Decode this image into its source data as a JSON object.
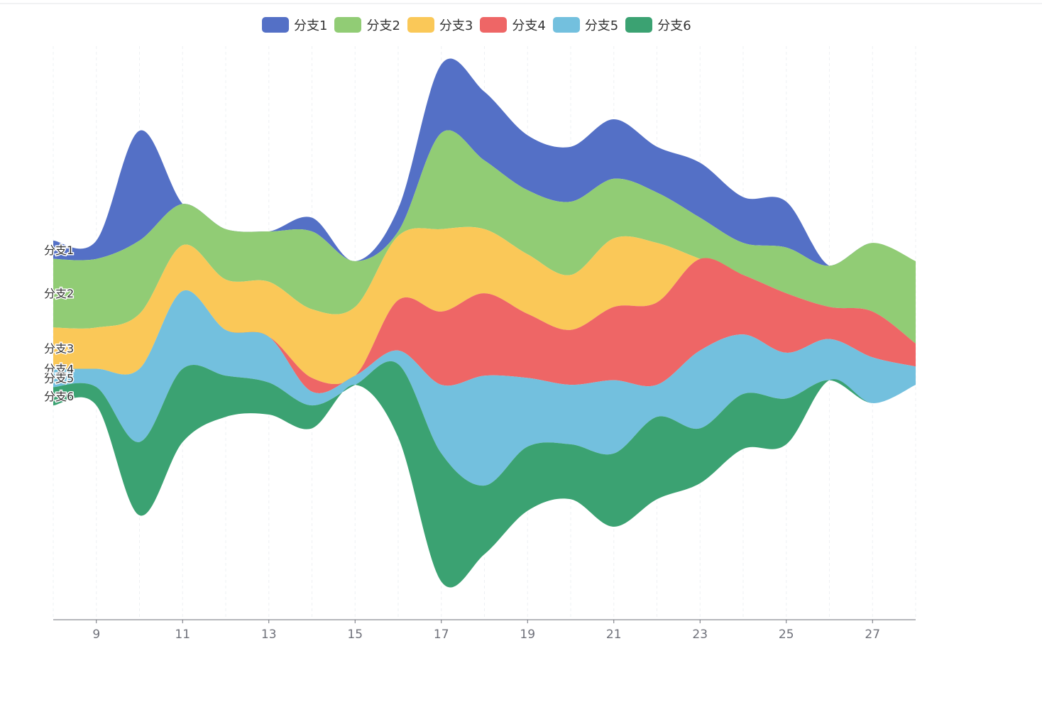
{
  "chart_data": {
    "type": "area",
    "stacking": "streamgraph",
    "x": [
      8,
      9,
      10,
      11,
      12,
      13,
      14,
      15,
      16,
      17,
      18,
      19,
      20,
      21,
      22,
      23,
      24,
      25,
      26,
      27,
      28
    ],
    "xticks": [
      9,
      11,
      13,
      15,
      17,
      19,
      21,
      23,
      25,
      27
    ],
    "xlim": [
      8,
      28
    ],
    "grid": "vertical dashed",
    "legend_position": "top",
    "series": [
      {
        "name": "分支1",
        "color": "#5470c6",
        "values": [
          2.0,
          2.0,
          12.0,
          0.0,
          0.0,
          0.0,
          1.5,
          0.0,
          2.5,
          7.5,
          7.5,
          6.0,
          6.0,
          6.5,
          5.0,
          6.0,
          5.0,
          5.0,
          0.0,
          0.0,
          0.0
        ]
      },
      {
        "name": "分支2",
        "color": "#91cc75",
        "values": [
          7.5,
          7.5,
          8.0,
          4.5,
          5.5,
          5.5,
          8.5,
          5.0,
          0.5,
          10.5,
          7.5,
          7.0,
          8.0,
          6.5,
          5.5,
          4.5,
          3.5,
          5.0,
          4.5,
          7.5,
          9.0
        ]
      },
      {
        "name": "分支3",
        "color": "#fac858",
        "values": [
          4.5,
          4.5,
          6.0,
          5.0,
          5.5,
          6.0,
          7.5,
          7.5,
          7.0,
          9.0,
          7.0,
          6.5,
          6.0,
          7.5,
          6.5,
          0.0,
          0.0,
          0.0,
          0.0,
          0.0,
          0.0
        ]
      },
      {
        "name": "分支4",
        "color": "#ee6666",
        "values": [
          0.0,
          0.0,
          0.0,
          0.0,
          0.0,
          0.0,
          1.5,
          0.0,
          5.5,
          8.0,
          9.0,
          7.0,
          6.0,
          8.0,
          9.0,
          10.0,
          6.5,
          6.5,
          3.5,
          5.0,
          2.5
        ]
      },
      {
        "name": "分支5",
        "color": "#73c0de",
        "values": [
          2.0,
          2.0,
          8.0,
          8.5,
          5.0,
          5.0,
          1.5,
          1.0,
          1.5,
          7.5,
          12.0,
          7.5,
          6.5,
          8.0,
          3.5,
          8.5,
          6.5,
          5.0,
          4.5,
          5.0,
          2.0
        ]
      },
      {
        "name": "分支6",
        "color": "#3ba272",
        "values": [
          2.0,
          2.0,
          8.0,
          8.0,
          4.5,
          3.5,
          2.5,
          0.0,
          8.0,
          14.0,
          7.5,
          7.0,
          6.0,
          8.0,
          9.0,
          6.0,
          6.0,
          5.0,
          0.0,
          0.0,
          0.0
        ]
      }
    ]
  }
}
